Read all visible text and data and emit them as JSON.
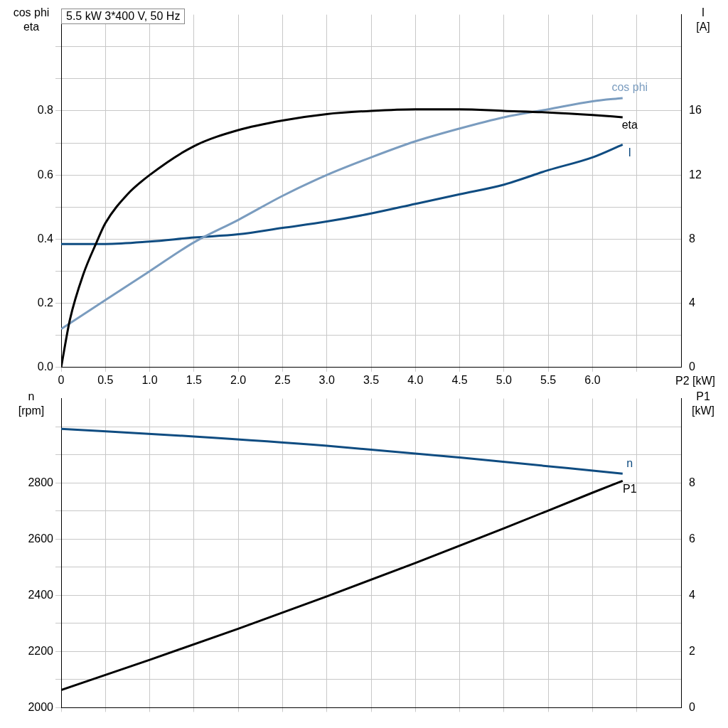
{
  "chart_data": [
    {
      "type": "line",
      "title": "5.5 kW   3*400 V, 50 Hz",
      "xlabel": "P2 [kW]",
      "ylabel": "cos phi\neta",
      "y2label": "I\n[A]",
      "grid": true,
      "legend": false,
      "marker": "none",
      "line_style": "solid",
      "xlim": [
        0,
        7
      ],
      "xticks": [
        {
          "value": 0,
          "label": "0"
        },
        {
          "value": 0.5,
          "label": "0.5"
        },
        {
          "value": 1,
          "label": "1.0"
        },
        {
          "value": 1.5,
          "label": "1.5"
        },
        {
          "value": 2,
          "label": "2.0"
        },
        {
          "value": 2.5,
          "label": "2.5"
        },
        {
          "value": 3,
          "label": "3.0"
        },
        {
          "value": 3.5,
          "label": "3.5"
        },
        {
          "value": 4,
          "label": "4.0"
        },
        {
          "value": 4.5,
          "label": "4.5"
        },
        {
          "value": 5,
          "label": "5.0"
        },
        {
          "value": 5.5,
          "label": "5.5"
        },
        {
          "value": 6,
          "label": "6.0"
        },
        {
          "value": 6.5,
          "label": null
        }
      ],
      "ylim": [
        0,
        1.1
      ],
      "yticks": [
        {
          "value": 0,
          "label": "0.0"
        },
        {
          "value": 0.1,
          "label": null
        },
        {
          "value": 0.2,
          "label": "0.2"
        },
        {
          "value": 0.3,
          "label": null
        },
        {
          "value": 0.4,
          "label": "0.4"
        },
        {
          "value": 0.5,
          "label": null
        },
        {
          "value": 0.6,
          "label": "0.6"
        },
        {
          "value": 0.7,
          "label": null
        },
        {
          "value": 0.8,
          "label": "0.8"
        },
        {
          "value": 0.9,
          "label": null
        },
        {
          "value": 1.0,
          "label": null
        }
      ],
      "y2lim": [
        0,
        22
      ],
      "y2ticks": [
        0,
        4,
        8,
        12,
        16
      ],
      "series": [
        {
          "name": "eta",
          "color": "#000000",
          "x": [
            0,
            0.1,
            0.25,
            0.4,
            0.5,
            0.75,
            1,
            1.5,
            2,
            2.5,
            3,
            3.5,
            4,
            4.5,
            5,
            5.5,
            6,
            6.34
          ],
          "values": [
            0,
            0.15,
            0.29,
            0.39,
            0.45,
            0.54,
            0.6,
            0.69,
            0.74,
            0.77,
            0.79,
            0.8,
            0.805,
            0.805,
            0.8,
            0.795,
            0.787,
            0.78
          ]
        },
        {
          "name": "cos phi",
          "color": "#7a9cbf",
          "x": [
            0,
            0.5,
            1,
            1.5,
            2,
            2.5,
            3,
            3.5,
            4,
            4.5,
            5,
            5.5,
            6,
            6.34
          ],
          "values": [
            0.12,
            0.21,
            0.3,
            0.39,
            0.46,
            0.535,
            0.6,
            0.655,
            0.705,
            0.745,
            0.78,
            0.805,
            0.83,
            0.84
          ]
        },
        {
          "name": "I",
          "color": "#0f4c81",
          "axis": "y2",
          "x": [
            0,
            0.5,
            1,
            1.5,
            2,
            2.5,
            3,
            3.5,
            4,
            4.5,
            5,
            5.5,
            6,
            6.34
          ],
          "values": [
            7.7,
            7.7,
            7.85,
            8.1,
            8.3,
            8.7,
            9.1,
            9.6,
            10.2,
            10.8,
            11.4,
            12.3,
            13.1,
            13.9
          ]
        }
      ]
    },
    {
      "type": "line",
      "ylabel": "n\n[rpm]",
      "y2label": "P1\n[kW]",
      "grid": true,
      "legend": false,
      "marker": "none",
      "line_style": "solid",
      "tick_labels": "y",
      "xlim": [
        0,
        7
      ],
      "xticks": [
        {
          "value": 0,
          "label": null
        },
        {
          "value": 0.5,
          "label": null
        },
        {
          "value": 1,
          "label": null
        },
        {
          "value": 1.5,
          "label": null
        },
        {
          "value": 2,
          "label": null
        },
        {
          "value": 2.5,
          "label": null
        },
        {
          "value": 3,
          "label": null
        },
        {
          "value": 3.5,
          "label": null
        },
        {
          "value": 4,
          "label": null
        },
        {
          "value": 4.5,
          "label": null
        },
        {
          "value": 5,
          "label": null
        },
        {
          "value": 5.5,
          "label": null
        },
        {
          "value": 6,
          "label": null
        },
        {
          "value": 6.5,
          "label": null
        }
      ],
      "ylim": [
        2000,
        3100
      ],
      "yticks": [
        2000,
        {
          "value": 2100,
          "label": null
        },
        2200,
        {
          "value": 2300,
          "label": null
        },
        2400,
        {
          "value": 2500,
          "label": null
        },
        2600,
        {
          "value": 2700,
          "label": null
        },
        2800,
        {
          "value": 2900,
          "label": null
        },
        {
          "value": 3000,
          "label": null
        }
      ],
      "y2lim": [
        0,
        11
      ],
      "y2ticks": [
        0,
        2,
        4,
        6,
        8
      ],
      "series": [
        {
          "name": "n",
          "color": "#0f4c81",
          "x": [
            0,
            1.5,
            3,
            4.5,
            6.34
          ],
          "values": [
            2992,
            2965,
            2932,
            2890,
            2833
          ]
        },
        {
          "name": "P1",
          "color": "#000000",
          "axis": "y2",
          "x": [
            0,
            1,
            2,
            3,
            4,
            5,
            6,
            6.34
          ],
          "values": [
            0.63,
            1.7,
            2.81,
            3.96,
            5.15,
            6.38,
            7.65,
            8.07
          ]
        }
      ]
    }
  ]
}
